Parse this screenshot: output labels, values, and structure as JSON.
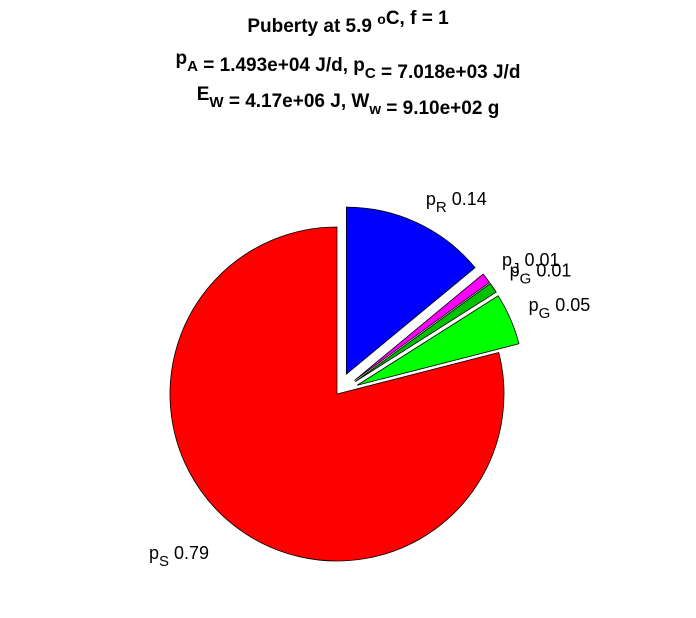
{
  "chart_data": {
    "type": "pie",
    "title_lines": [
      [
        {
          "t": "Puberty at 5.9 "
        },
        {
          "t": "o",
          "s": "sup"
        },
        {
          "t": "C, f = 1"
        }
      ],
      [
        {
          "t": "p"
        },
        {
          "t": "A",
          "s": "sub"
        },
        {
          "t": " = 1.493e+04 J/d,  p"
        },
        {
          "t": "C",
          "s": "sub"
        },
        {
          "t": " = 7.018e+03 J/d"
        }
      ],
      [
        {
          "t": "E"
        },
        {
          "t": "W",
          "s": "sub"
        },
        {
          "t": " = 4.17e+06 J, W"
        },
        {
          "t": "w",
          "s": "sub"
        },
        {
          "t": " = 9.10e+02 g"
        }
      ]
    ],
    "slices": [
      {
        "name": "p",
        "sub": "R",
        "value": 0.14,
        "color": "#0000ff",
        "explode": true
      },
      {
        "name": "p",
        "sub": "J",
        "value": 0.01,
        "color": "#ff00ff",
        "explode": true
      },
      {
        "name": "p",
        "sub": "G",
        "value": 0.01,
        "color": "#00c000",
        "explode": true
      },
      {
        "name": "p",
        "sub": "G",
        "value": 0.05,
        "color": "#00ff00",
        "explode": true
      },
      {
        "name": "p",
        "sub": "S",
        "value": 0.79,
        "color": "#ff0000",
        "explode": false
      }
    ]
  }
}
